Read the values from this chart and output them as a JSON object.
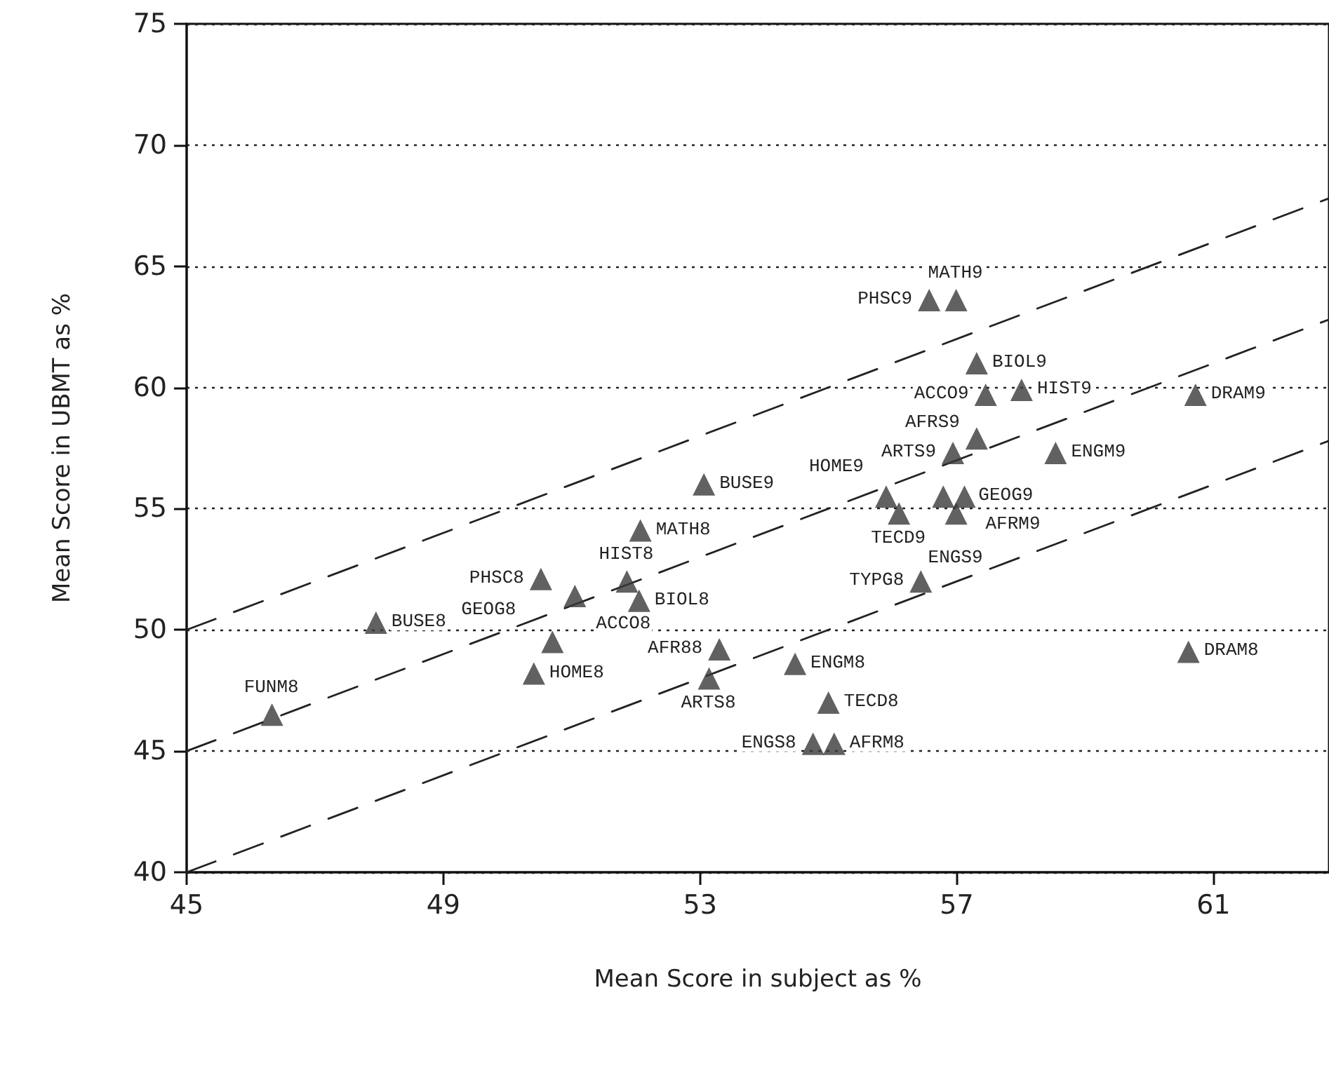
{
  "chart_data": {
    "type": "scatter",
    "xlabel": "Mean Score in subject as %",
    "ylabel": "Mean Score in UBMT as %",
    "xlim": [
      45,
      62.8
    ],
    "xticks": [
      45,
      49,
      53,
      57,
      61
    ],
    "ylim": [
      40,
      75
    ],
    "yticks": [
      40,
      45,
      50,
      55,
      60,
      65,
      70,
      75
    ],
    "grid": "y",
    "series": [
      {
        "marker": "triangle",
        "color": "#3a3a3a",
        "x": [
          46.33,
          47.95,
          50.52,
          51.05,
          50.41,
          50.7,
          51.86,
          52.05,
          52.07,
          53.06,
          53.14,
          53.3,
          54.48,
          55.0,
          54.76,
          55.09,
          56.44,
          60.61,
          56.57,
          56.99,
          57.31,
          57.45,
          58.01,
          60.72,
          57.31,
          58.54,
          56.94,
          55.9,
          56.1,
          56.79,
          57.12,
          56.99
        ],
        "values": [
          46.5,
          50.3,
          52.1,
          51.4,
          48.2,
          49.5,
          52.0,
          51.2,
          54.1,
          56.0,
          48.0,
          49.2,
          48.6,
          47.0,
          45.3,
          45.3,
          52.0,
          49.1,
          63.6,
          63.6,
          61.0,
          59.7,
          59.9,
          59.7,
          57.9,
          57.3,
          57.3,
          55.5,
          54.8,
          55.5,
          55.5,
          54.8
        ]
      },
      {
        "type": "line",
        "marker": "none",
        "line_style": "dashed",
        "color": "#222222",
        "x": [
          45,
          62.8
        ],
        "values": [
          50,
          67.8
        ]
      },
      {
        "type": "line",
        "marker": "none",
        "line_style": "dashed",
        "color": "#222222",
        "x": [
          45,
          62.8
        ],
        "values": [
          45,
          62.8
        ]
      },
      {
        "type": "line",
        "marker": "none",
        "line_style": "dashed",
        "color": "#222222",
        "x": [
          45,
          62.8
        ],
        "values": [
          40,
          57.8
        ]
      }
    ],
    "annotations": [
      {
        "text": "FUNM8",
        "x": 46.33,
        "y": 46.5
      },
      {
        "text": "BUSE8",
        "x": 47.95,
        "y": 50.3
      },
      {
        "text": "PHSC8",
        "x": 50.52,
        "y": 52.1
      },
      {
        "text": "ACCO8",
        "x": 51.05,
        "y": 51.4
      },
      {
        "text": "HOME8",
        "x": 50.41,
        "y": 48.2
      },
      {
        "text": "GEOG8",
        "x": 50.7,
        "y": 49.5
      },
      {
        "text": "HIST8",
        "x": 51.86,
        "y": 52.0
      },
      {
        "text": "BIOL8",
        "x": 52.05,
        "y": 51.2
      },
      {
        "text": "MATH8",
        "x": 52.07,
        "y": 54.1
      },
      {
        "text": "BUSE9",
        "x": 53.06,
        "y": 56.0
      },
      {
        "text": "ARTS8",
        "x": 53.14,
        "y": 48.0
      },
      {
        "text": "AFR88",
        "x": 53.3,
        "y": 49.2
      },
      {
        "text": "ENGM8",
        "x": 54.48,
        "y": 48.6
      },
      {
        "text": "TECD8",
        "x": 55.0,
        "y": 47.0
      },
      {
        "text": "ENGS8",
        "x": 54.76,
        "y": 45.3
      },
      {
        "text": "AFRM8",
        "x": 55.09,
        "y": 45.3
      },
      {
        "text": "TYPG8",
        "x": 56.44,
        "y": 52.0
      },
      {
        "text": "DRAM8",
        "x": 60.61,
        "y": 49.1
      },
      {
        "text": "PHSC9",
        "x": 56.57,
        "y": 63.6
      },
      {
        "text": "MATH9",
        "x": 56.99,
        "y": 63.6
      },
      {
        "text": "BIOL9",
        "x": 57.31,
        "y": 61.0
      },
      {
        "text": "ACCO9",
        "x": 57.45,
        "y": 59.7
      },
      {
        "text": "HIST9",
        "x": 58.01,
        "y": 59.9
      },
      {
        "text": "DRAM9",
        "x": 60.72,
        "y": 59.7
      },
      {
        "text": "AFRS9",
        "x": 57.31,
        "y": 57.9
      },
      {
        "text": "ENGM9",
        "x": 58.54,
        "y": 57.3
      },
      {
        "text": "ARTS9",
        "x": 56.94,
        "y": 57.3
      },
      {
        "text": "HOME9",
        "x": 55.9,
        "y": 55.5
      },
      {
        "text": "TECD9",
        "x": 56.1,
        "y": 54.8
      },
      {
        "text": "GEOG9",
        "x": 56.79,
        "y": 55.5
      },
      {
        "text": "AFRM9",
        "x": 57.12,
        "y": 55.5
      },
      {
        "text": "ENGS9",
        "x": 56.99,
        "y": 54.8
      }
    ]
  }
}
